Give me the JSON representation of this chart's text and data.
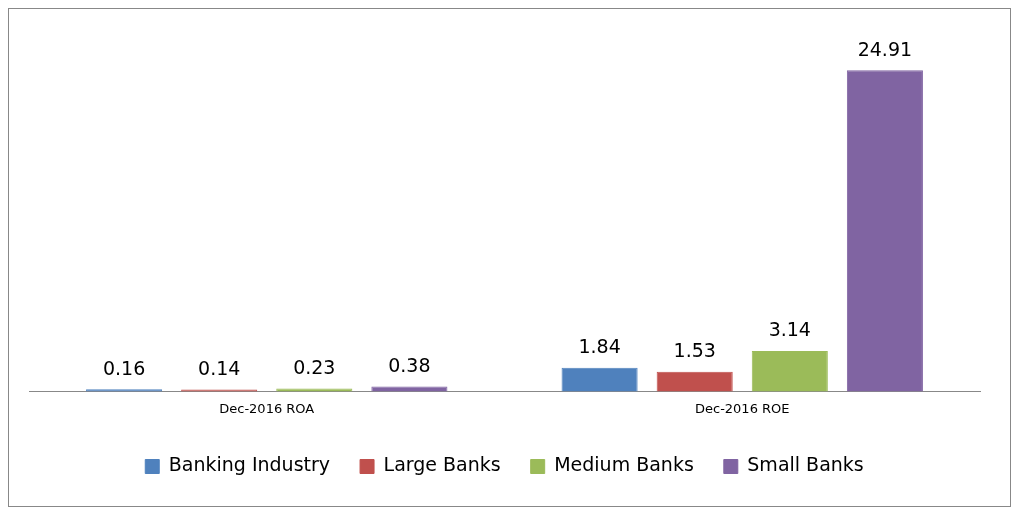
{
  "chart_data": {
    "type": "bar",
    "categories": [
      "Dec-2016 ROA",
      "Dec-2016 ROE"
    ],
    "series": [
      {
        "name": "Banking Industry",
        "color": "#4f81bd",
        "values": [
          0.16,
          1.84
        ]
      },
      {
        "name": "Large Banks",
        "color": "#c0504d",
        "values": [
          0.14,
          1.53
        ]
      },
      {
        "name": "Medium Banks",
        "color": "#9bbb59",
        "values": [
          0.23,
          3.14
        ]
      },
      {
        "name": "Small Banks",
        "color": "#8064a2",
        "values": [
          0.38,
          24.91
        ]
      }
    ],
    "data_labels": true,
    "legend": "bottom",
    "grid": false
  }
}
